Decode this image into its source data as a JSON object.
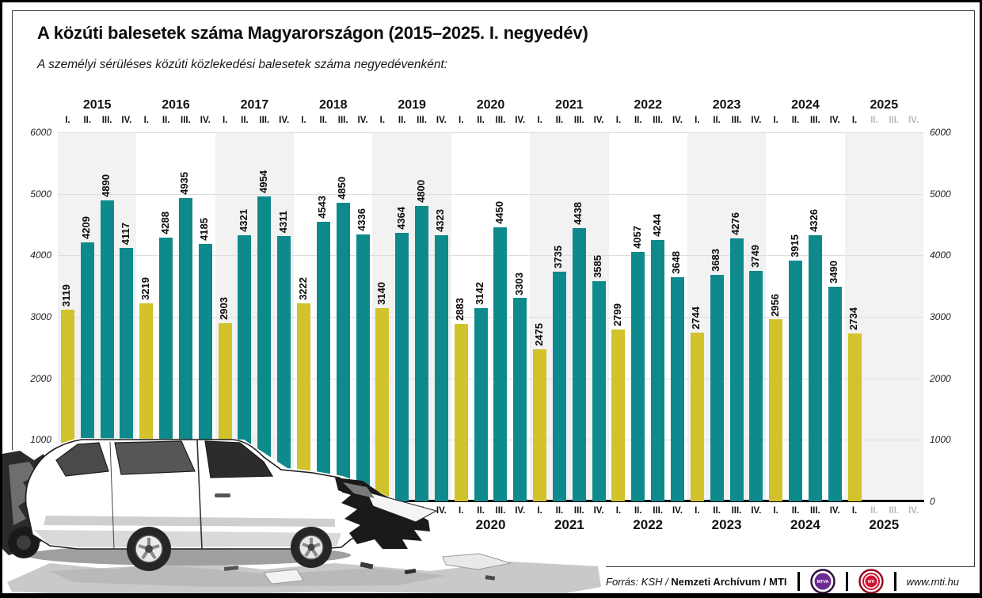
{
  "header": {
    "title": "A közúti balesetek száma Magyarországon (2015–2025. I. negyedév)",
    "subtitle": "A személyi sérüléses közúti közlekedési balesetek száma negyedévenként:"
  },
  "chart_data": {
    "type": "bar",
    "title": "A közúti balesetek száma Magyarországon (2015–2025. I. negyedév)",
    "subtitle": "A személyi sérüléses közúti közlekedési balesetek száma negyedévenként:",
    "xlabel": "",
    "ylabel": "",
    "years": [
      "2015",
      "2016",
      "2017",
      "2018",
      "2019",
      "2020",
      "2021",
      "2022",
      "2023",
      "2024",
      "2025"
    ],
    "quarter_labels": [
      "I.",
      "II.",
      "III.",
      "IV."
    ],
    "values_by_year": [
      [
        3119,
        4209,
        4890,
        4117
      ],
      [
        3219,
        4288,
        4935,
        4185
      ],
      [
        2903,
        4321,
        4954,
        4311
      ],
      [
        3222,
        4543,
        4850,
        4336
      ],
      [
        3140,
        4364,
        4800,
        4323
      ],
      [
        2883,
        3142,
        4450,
        3303
      ],
      [
        2475,
        3735,
        4438,
        3585
      ],
      [
        2799,
        4057,
        4244,
        3648
      ],
      [
        2744,
        3683,
        4276,
        3749
      ],
      [
        2956,
        3915,
        4326,
        3490
      ],
      [
        2734,
        null,
        null,
        null
      ]
    ],
    "incomplete_year": {
      "year": "2025",
      "available_quarters": 1
    },
    "ylim": [
      0,
      6000
    ],
    "yticks": [
      0,
      1000,
      2000,
      3000,
      4000,
      5000,
      6000
    ],
    "grid": true,
    "legend": "none",
    "colors": {
      "q1_bar": "#d2c22b",
      "other_bar": "#0f8a8c",
      "future_quarter_label": "#b9b9b9",
      "year_stripe": "#f2f2f2"
    }
  },
  "illustration": {
    "alt": "crashed white car after road accident"
  },
  "footer": {
    "source_italic": "Forrás: KSH /",
    "source_bold": "Nemzeti Archívum / MTI",
    "website": "www.mti.hu",
    "logos": [
      {
        "label": "MTVA"
      },
      {
        "label": "MTI"
      }
    ]
  }
}
